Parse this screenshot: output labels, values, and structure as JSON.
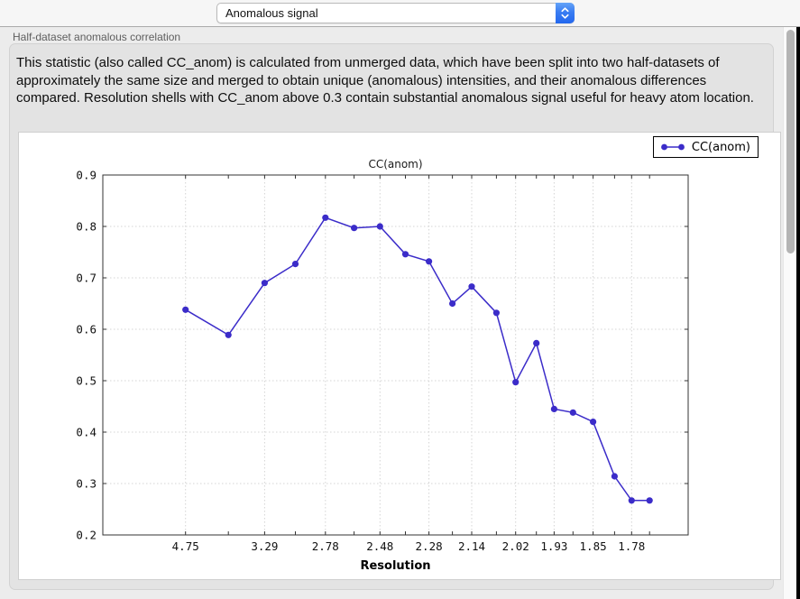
{
  "header": {
    "dropdown_value": "Anomalous signal",
    "section_label": "Half-dataset anomalous correlation"
  },
  "description": "This statistic (also called CC_anom) is calculated from unmerged data, which have been split into two half-datasets of approximately the same size and merged to obtain unique (anomalous) intensities, and their anomalous differences compared.  Resolution shells with CC_anom above 0.3 contain substantial anomalous signal useful for heavy atom location.",
  "chart_data": {
    "type": "line",
    "title": "CC(anom)",
    "xlabel": "Resolution",
    "legend": {
      "label": "CC(anom)",
      "position": "top-right"
    },
    "series_color": "#3b2cc9",
    "x_axis_units": "inverse_d_squared",
    "xlim": [
      -0.006,
      0.35
    ],
    "ylim": [
      0.2,
      0.9
    ],
    "y_ticks": [
      0.2,
      0.3,
      0.4,
      0.5,
      0.6,
      0.7,
      0.8,
      0.9
    ],
    "grid": true,
    "resolution_shells_d": [
      4.75,
      3.77,
      3.29,
      3.0,
      2.78,
      2.61,
      2.48,
      2.37,
      2.28,
      2.2,
      2.14,
      2.07,
      2.02,
      1.97,
      1.93,
      1.89,
      1.85,
      1.81,
      1.78,
      1.75
    ],
    "cc_anom_values": [
      0.638,
      0.589,
      0.69,
      0.727,
      0.817,
      0.797,
      0.8,
      0.746,
      0.732,
      0.65,
      0.683,
      0.632,
      0.497,
      0.573,
      0.445,
      0.438,
      0.42,
      0.314,
      0.267,
      0.267
    ],
    "x_tick_labeled_every": 2,
    "x_tick_labels": [
      "4.75",
      "3.29",
      "2.78",
      "2.48",
      "2.28",
      "2.14",
      "2.02",
      "1.93",
      "1.85",
      "1.78"
    ]
  }
}
